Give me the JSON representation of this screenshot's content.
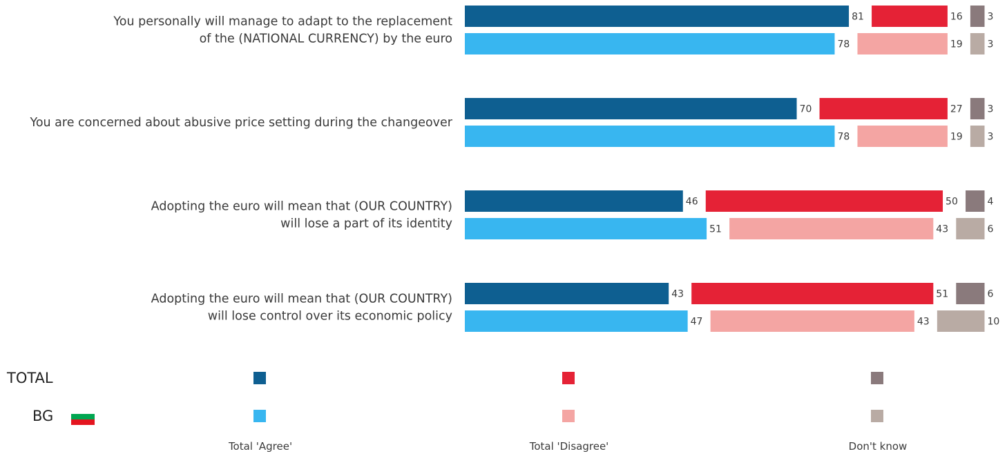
{
  "questions": [
    "You personally will manage to adapt to the replacement\nof the (NATIONAL CURRENCY) by the euro",
    "You are concerned about abusive price setting during the changeover",
    "Adopting the euro will mean that (OUR COUNTRY)\nwill lose a part of its identity",
    "Adopting the euro will mean that (OUR COUNTRY)\nwill lose control over its economic policy"
  ],
  "legend": {
    "groups": [
      "TOTAL",
      "BG"
    ],
    "categories": [
      "Total 'Agree'",
      "Total 'Disagree'",
      "Don't know"
    ]
  },
  "colors": {
    "total": [
      "#0e5f91",
      "#e52236",
      "#8a7a7c"
    ],
    "bg": [
      "#38b6f0",
      "#f4a5a3",
      "#b9aba4"
    ],
    "flag": [
      "#ffffff",
      "#00a651",
      "#e4151f"
    ]
  },
  "chart_data": {
    "type": "bar",
    "orientation": "horizontal-stacked",
    "categories": [
      "You personally will manage to adapt to the replacement of the (NATIONAL CURRENCY) by the euro",
      "You are concerned about abusive price setting during the changeover",
      "Adopting the euro will mean that (OUR COUNTRY) will lose a part of its identity",
      "Adopting the euro will mean that (OUR COUNTRY) will lose control over its economic policy"
    ],
    "series": [
      {
        "name": "TOTAL",
        "agree": [
          81,
          70,
          46,
          43
        ],
        "disagree": [
          16,
          27,
          50,
          51
        ],
        "dont_know": [
          3,
          3,
          4,
          6
        ]
      },
      {
        "name": "BG",
        "agree": [
          78,
          78,
          51,
          47
        ],
        "disagree": [
          19,
          19,
          43,
          43
        ],
        "dont_know": [
          3,
          3,
          6,
          10
        ]
      }
    ],
    "legend_placement": "bottom",
    "grid": false
  }
}
